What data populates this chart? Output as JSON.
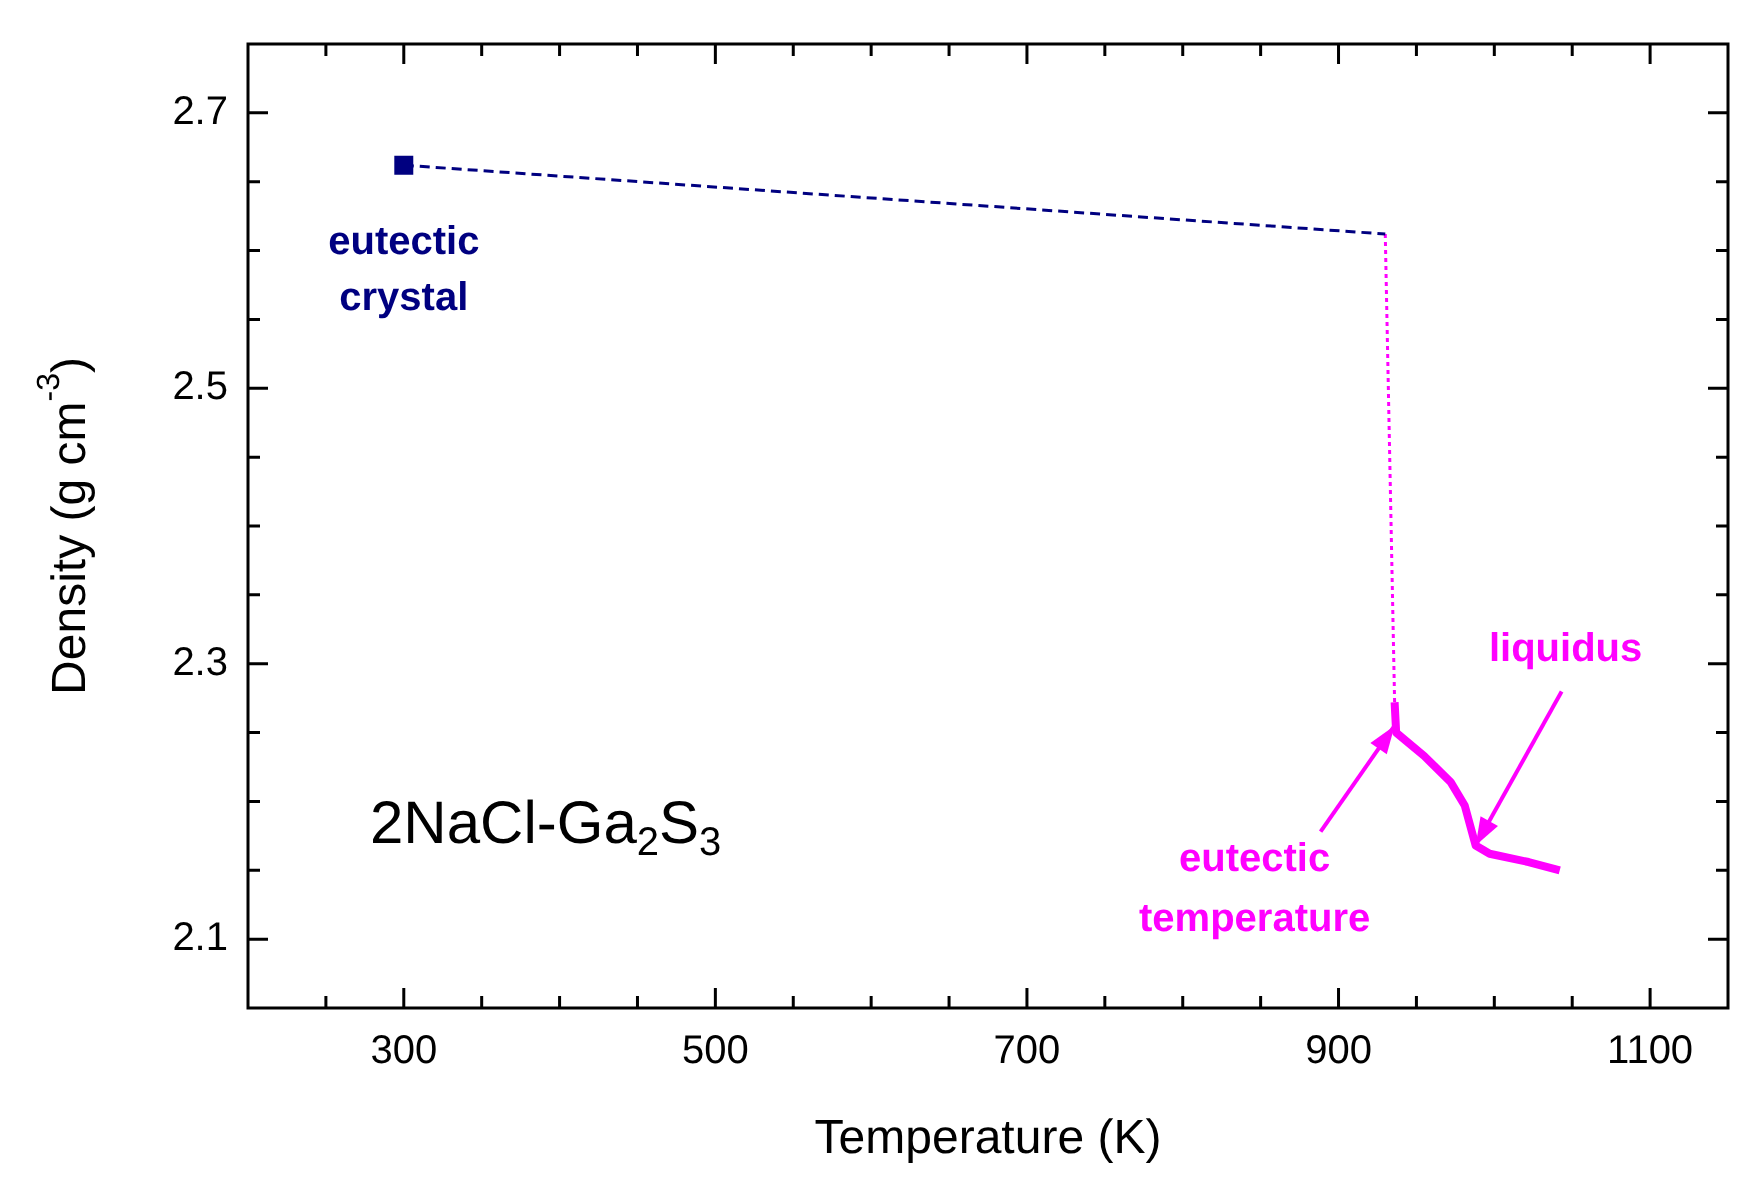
{
  "chart_data": {
    "type": "line",
    "xlabel": "Temperature (K)",
    "ylabel": "Density (g cm$^{-3}$)",
    "xlim": [
      200,
      1150
    ],
    "ylim": [
      2.05,
      2.75
    ],
    "xticks": [
      {
        "value": 250,
        "label": null
      },
      300,
      {
        "value": 350,
        "label": null
      },
      {
        "value": 400,
        "label": null
      },
      {
        "value": 450,
        "label": null
      },
      500,
      {
        "value": 550,
        "label": null
      },
      {
        "value": 600,
        "label": null
      },
      {
        "value": 650,
        "label": null
      },
      700,
      {
        "value": 750,
        "label": null
      },
      {
        "value": 800,
        "label": null
      },
      {
        "value": 850,
        "label": null
      },
      900,
      {
        "value": 950,
        "label": null
      },
      {
        "value": 1000,
        "label": null
      },
      {
        "value": 1050,
        "label": null
      },
      1100
    ],
    "yticks": [
      2.1,
      {
        "value": 2.15,
        "label": null
      },
      {
        "value": 2.2,
        "label": null
      },
      {
        "value": 2.25,
        "label": null
      },
      2.3,
      {
        "value": 2.35,
        "label": null
      },
      {
        "value": 2.4,
        "label": null
      },
      {
        "value": 2.45,
        "label": null
      },
      2.5,
      {
        "value": 2.55,
        "label": null
      },
      {
        "value": 2.6,
        "label": null
      },
      {
        "value": 2.65,
        "label": null
      },
      2.7
    ],
    "grid": false,
    "legend": false,
    "series": [
      {
        "type": "scatter",
        "color": "#000080",
        "marker": "square",
        "x": [
          300
        ],
        "values": [
          2.662
        ]
      },
      {
        "type": "line",
        "color": "#000080",
        "marker": "none",
        "line_style": "dashed",
        "x": [
          300,
          930
        ],
        "values": [
          2.662,
          2.612
        ]
      },
      {
        "type": "line",
        "color": "#ff00ff",
        "marker": "none",
        "line_style": "dotted",
        "x": [
          930,
          936
        ],
        "values": [
          2.612,
          2.272
        ]
      },
      {
        "type": "line",
        "color": "#ff00ff",
        "marker": "none",
        "line_style": "solid",
        "x": [
          936,
          937,
          955,
          972,
          981,
          988,
          997,
          1022,
          1042
        ],
        "values": [
          2.272,
          2.25,
          2.233,
          2.214,
          2.197,
          2.168,
          2.162,
          2.156,
          2.15
        ]
      }
    ],
    "annotations": [
      {
        "text": "eutectic crystal",
        "x": 300,
        "y": 2.662
      },
      {
        "text": "eutectic temperature",
        "x": 936,
        "y": 2.255
      },
      {
        "text": "liquidus",
        "x": 988,
        "y": 2.168
      },
      "2NaCl-Ga$_{2}$S$_{3}$"
    ]
  }
}
